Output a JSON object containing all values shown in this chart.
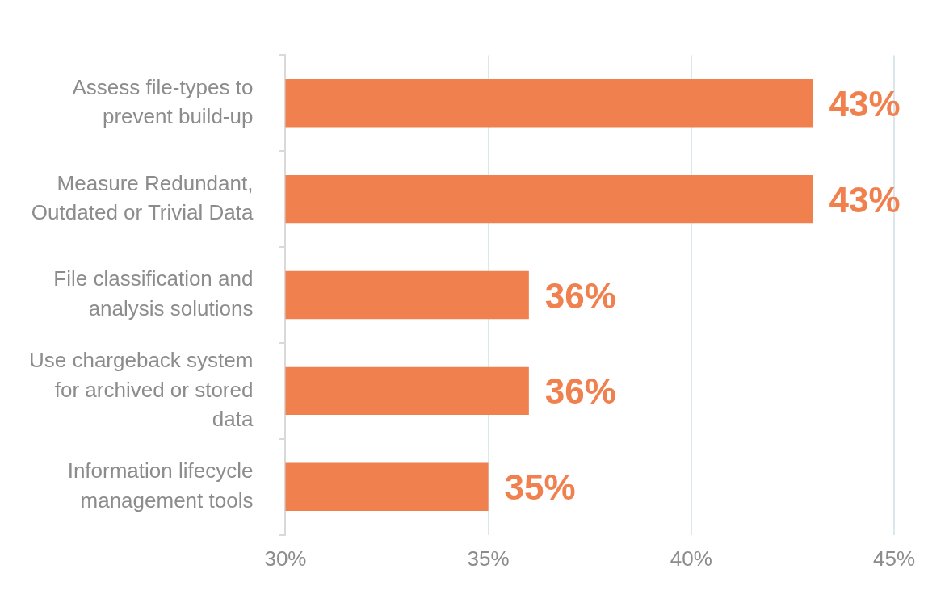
{
  "chart_data": {
    "type": "bar",
    "orientation": "horizontal",
    "categories": [
      "Assess file-types to prevent build-up",
      "Measure Redundant, Outdated or Trivial Data",
      "File classification and analysis solutions",
      "Use chargeback system for archived or stored data",
      "Information lifecycle management tools"
    ],
    "values": [
      43,
      43,
      36,
      36,
      35
    ],
    "value_labels": [
      "43%",
      "43%",
      "36%",
      "36%",
      "35%"
    ],
    "color": "#f0804d",
    "xlim": [
      30,
      45
    ],
    "xticks": [
      {
        "value": 30,
        "label": "30%"
      },
      {
        "value": 35,
        "label": "35%"
      },
      {
        "value": 40,
        "label": "40%"
      },
      {
        "value": 45,
        "label": "45%"
      }
    ],
    "grid": "x",
    "legend": false
  }
}
